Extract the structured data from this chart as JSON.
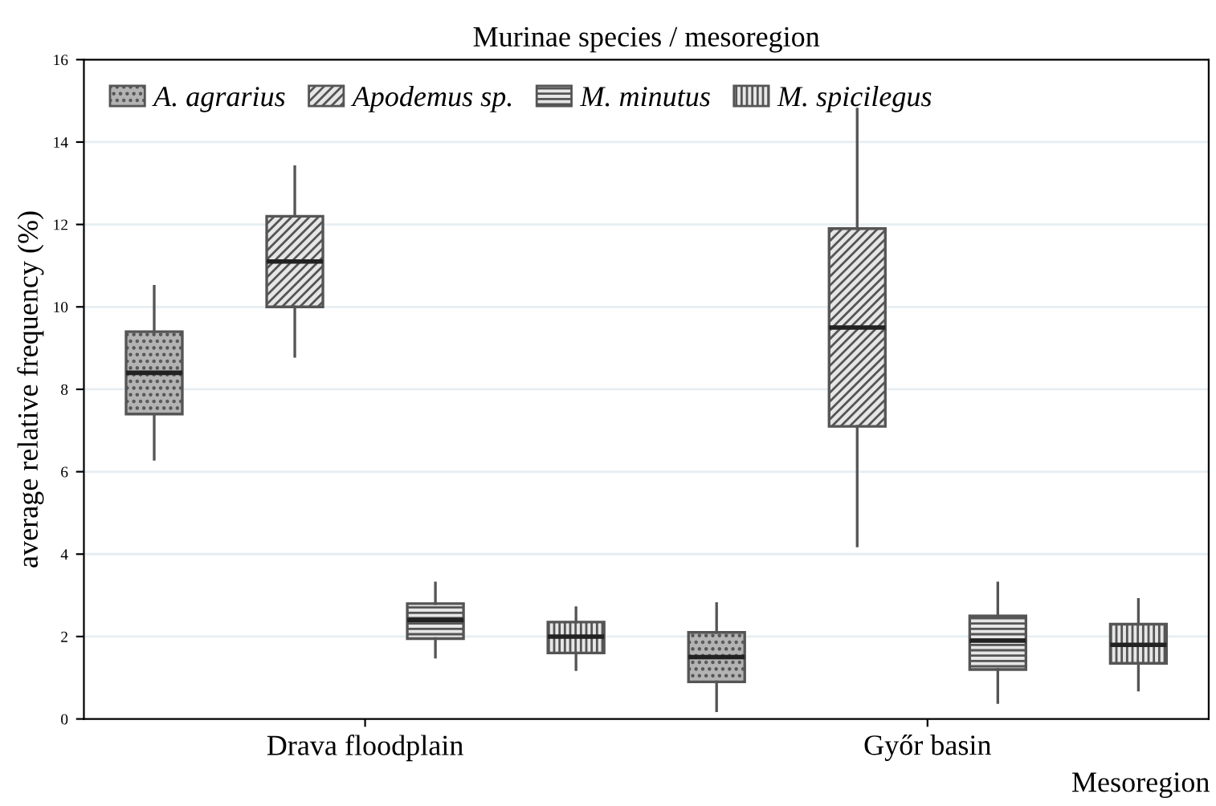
{
  "chart_data": {
    "type": "box",
    "title": "Murinae species / mesoregion",
    "xlabel": "Mesoregion",
    "ylabel": "average relative frequency (%)",
    "categories": [
      "Drava floodplain",
      "Győr basin"
    ],
    "ylim": [
      0,
      16
    ],
    "yticks": [
      0,
      2,
      4,
      6,
      8,
      10,
      12,
      14,
      16
    ],
    "grid": "y",
    "legend": "top left",
    "series": [
      {
        "name": "A. agrarius",
        "color": "#555555",
        "boxes": [
          {
            "low": 6.3,
            "q1": 7.4,
            "median": 8.4,
            "q3": 9.4,
            "high": 10.5
          },
          {
            "low": 0.2,
            "q1": 0.9,
            "median": 1.5,
            "q3": 2.1,
            "high": 2.8
          }
        ]
      },
      {
        "name": "Apodemus sp.",
        "color": "#555555",
        "boxes": [
          {
            "low": 8.8,
            "q1": 10.0,
            "median": 11.1,
            "q3": 12.2,
            "high": 13.4
          },
          {
            "low": 4.2,
            "q1": 7.1,
            "median": 9.5,
            "q3": 11.9,
            "high": 14.8
          }
        ]
      },
      {
        "name": "M. minutus",
        "color": "#555555",
        "boxes": [
          {
            "low": 1.5,
            "q1": 1.95,
            "median": 2.4,
            "q3": 2.8,
            "high": 3.3
          },
          {
            "low": 0.4,
            "q1": 1.2,
            "median": 1.9,
            "q3": 2.5,
            "high": 3.3
          }
        ]
      },
      {
        "name": "M. spicilegus",
        "color": "#555555",
        "boxes": [
          {
            "low": 1.2,
            "q1": 1.6,
            "median": 2.0,
            "q3": 2.35,
            "high": 2.7
          },
          {
            "low": 0.7,
            "q1": 1.35,
            "median": 1.8,
            "q3": 2.3,
            "high": 2.9
          }
        ]
      }
    ]
  }
}
